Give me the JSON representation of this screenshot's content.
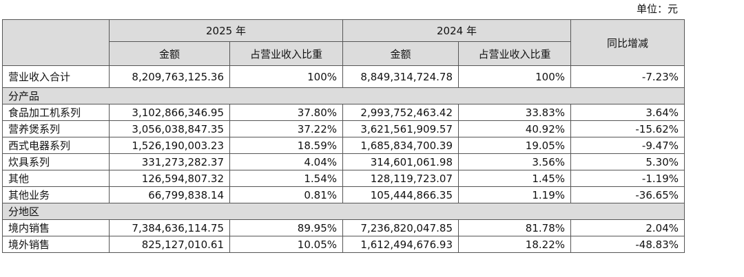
{
  "unit": "单位：元",
  "table": {
    "header": [
      "2025 年",
      "2024 年",
      "同比增减"
    ],
    "subheader": [
      "金额",
      "占营业收入比重",
      "金额",
      "占营业收入比重"
    ],
    "rows": [
      [
        "营业收入合计",
        "8,209,763,125.36",
        "100%",
        "8,849,314,724.78",
        "100%",
        "-7.23%"
      ],
      [
        "分产品"
      ],
      [
        "食品加工机系列",
        "3,102,866,346.95",
        "37.80%",
        "2,993,752,463.42",
        "33.83%",
        "3.64%"
      ],
      [
        "营养煲系列",
        "3,056,038,847.35",
        "37.22%",
        "3,621,561,909.57",
        "40.92%",
        "-15.62%"
      ],
      [
        "西式电器系列",
        "1,526,190,003.23",
        "18.59%",
        "1,685,834,700.39",
        "19.05%",
        "-9.47%"
      ],
      [
        "炊具系列",
        "331,273,282.37",
        "4.04%",
        "314,601,061.98",
        "3.56%",
        "5.30%"
      ],
      [
        "其他",
        "126,594,807.32",
        "1.54%",
        "128,119,723.07",
        "1.45%",
        "-1.19%"
      ],
      [
        "其他业务",
        "66,799,838.14",
        "0.81%",
        "105,444,866.35",
        "1.19%",
        "-36.65%"
      ],
      [
        "分地区"
      ],
      [
        "境内销售",
        "7,384,636,114.75",
        "89.95%",
        "7,236,820,047.85",
        "81.78%",
        "2.04%"
      ],
      [
        "境外销售",
        "825,127,010.61",
        "10.05%",
        "1,612,494,676.93",
        "18.22%",
        "-48.83%"
      ]
    ]
  }
}
